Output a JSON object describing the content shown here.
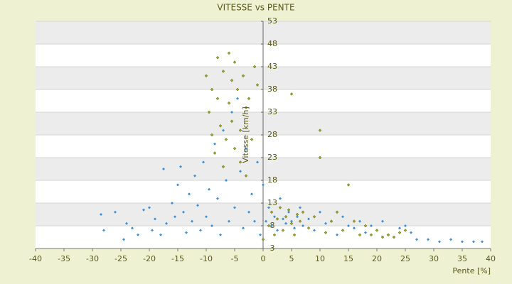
{
  "chart_data": {
    "type": "scatter",
    "title": "VITESSE vs PENTE",
    "x_label": "Pente [%]",
    "y_label": "Vitesse [km/h]",
    "xlim": [
      -40,
      40
    ],
    "xticks": [
      -40,
      -35,
      -30,
      -25,
      -20,
      -15,
      -10,
      -5,
      0,
      5,
      10,
      15,
      20,
      25,
      30,
      35,
      40
    ],
    "ylim": [
      3,
      53
    ],
    "yticks": [
      3,
      8,
      13,
      18,
      23,
      28,
      33,
      38,
      43,
      48,
      53
    ],
    "grid": true,
    "series": [
      {
        "color": "#3d8fd6",
        "x": [
          -28.5,
          -28,
          -26,
          -24.5,
          -24,
          -23,
          -22,
          -21,
          -20,
          -19.5,
          -19,
          -18,
          -17.5,
          -17,
          -16,
          -15.5,
          -15,
          -14.5,
          -14,
          -13.5,
          -13,
          -12.5,
          -12,
          -11.5,
          -11,
          -10.5,
          -10,
          -9.5,
          -9,
          -8.5,
          -8,
          -7.5,
          -7,
          -6.5,
          -6,
          -5.5,
          -5,
          -4.5,
          -4,
          -3.5,
          -3,
          -2.5,
          -2,
          -1.5,
          -1,
          -0.5,
          0,
          0.5,
          1,
          1.5,
          2,
          2.5,
          3,
          3.5,
          4,
          4.5,
          5,
          5.5,
          6,
          6.5,
          7,
          8,
          9,
          10,
          11,
          12,
          13,
          14,
          15,
          16,
          17,
          18,
          19,
          20,
          21,
          22,
          24,
          25,
          26,
          27,
          29,
          31,
          33,
          35,
          37,
          38.5
        ],
        "y": [
          10.5,
          7,
          11,
          5,
          8.5,
          7.5,
          6,
          11.5,
          12,
          7,
          9.5,
          6,
          20.5,
          8.5,
          13,
          10,
          17,
          21,
          11,
          6.5,
          15,
          9,
          19,
          12.5,
          7,
          22,
          10,
          16,
          8,
          26,
          14,
          6,
          29,
          18,
          9,
          33,
          12,
          36,
          20,
          7.5,
          25,
          11,
          15,
          9,
          22,
          6,
          17,
          9,
          12,
          8,
          10,
          7,
          14,
          9.5,
          8.5,
          11,
          9,
          7.5,
          10,
          12,
          8,
          9.5,
          7,
          11,
          8.5,
          9,
          6,
          10,
          8,
          7.5,
          9,
          6.5,
          8,
          7,
          9,
          6,
          7.5,
          8,
          6.5,
          5,
          5,
          4.5,
          5,
          4.5,
          4.5,
          4.5
        ]
      },
      {
        "color": "#9aa61c",
        "x": [
          -10,
          -9.5,
          -9,
          -9,
          -8.5,
          -8,
          -8,
          -7.5,
          -7,
          -7,
          -6.5,
          -6,
          -6,
          -5.5,
          -5.5,
          -5,
          -5,
          -4.5,
          -4,
          -4,
          -3.5,
          -3,
          -3,
          -2.5,
          -2,
          -1.5,
          -1,
          0,
          1,
          1.5,
          2,
          2.5,
          3,
          3.5,
          4,
          4.5,
          5,
          5,
          5.5,
          6,
          6.5,
          7,
          8,
          9,
          10,
          10,
          11,
          12,
          13,
          14,
          15,
          16,
          17,
          18,
          19,
          20,
          21,
          22,
          23,
          24,
          25
        ],
        "y": [
          41,
          33,
          28,
          38,
          24,
          36,
          45,
          30,
          42,
          21,
          27,
          46,
          35,
          31,
          40,
          25,
          44,
          38,
          29,
          22,
          41,
          34,
          19,
          36,
          27,
          43,
          39,
          5,
          8,
          11,
          6,
          9.5,
          12,
          7,
          10,
          11.5,
          37,
          8.5,
          6,
          10.5,
          9,
          11,
          7.5,
          10,
          29,
          23,
          6.5,
          9,
          11,
          7,
          17,
          9,
          6,
          8,
          6,
          7,
          5.5,
          6,
          5.5,
          6.5,
          7
        ]
      }
    ]
  }
}
